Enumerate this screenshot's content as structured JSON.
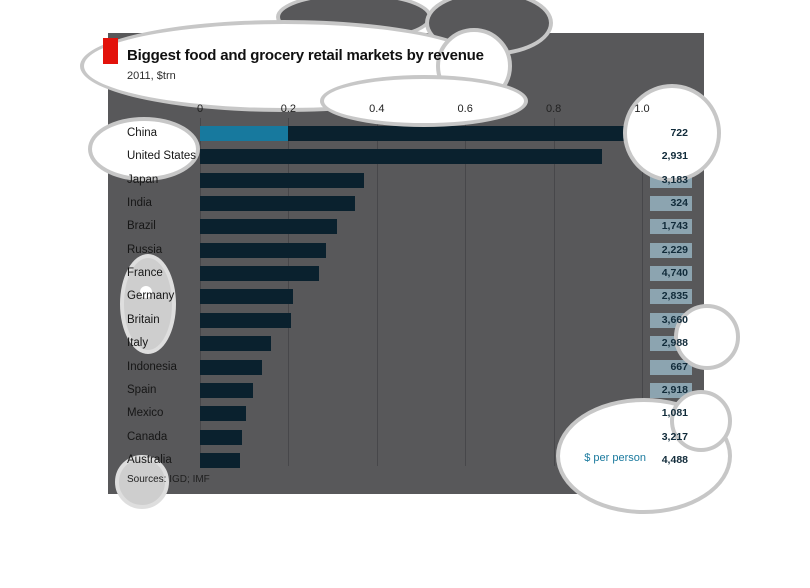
{
  "header": {
    "title": "Biggest food and grocery retail markets by revenue",
    "subtitle": "2011, $trn"
  },
  "chart_data": {
    "type": "bar",
    "orientation": "horizontal",
    "title": "Biggest food and grocery retail markets by revenue",
    "unit_note": "2011, $trn",
    "xlabel": "",
    "ylabel": "",
    "xlim": [
      0,
      1.0
    ],
    "x_ticks": [
      0,
      0.2,
      0.4,
      0.6,
      0.8,
      1.0
    ],
    "x_tick_labels": [
      "0",
      "0.2",
      "0.4",
      "0.6",
      "0.8",
      "1.0"
    ],
    "grid": true,
    "legend_position": "none",
    "categories": [
      "China",
      "United States",
      "Japan",
      "India",
      "Brazil",
      "Russia",
      "France",
      "Germany",
      "Britain",
      "Italy",
      "Indonesia",
      "Spain",
      "Mexico",
      "Canada",
      "Australia"
    ],
    "series": [
      {
        "name": "Revenue, $trn",
        "values": [
          0.97,
          0.91,
          0.37,
          0.35,
          0.31,
          0.285,
          0.27,
          0.21,
          0.205,
          0.16,
          0.14,
          0.12,
          0.105,
          0.095,
          0.09
        ]
      },
      {
        "name": "$ per person",
        "values": [
          722,
          2931,
          3183,
          324,
          1743,
          2229,
          4740,
          2835,
          3660,
          2988,
          667,
          2918,
          1081,
          3217,
          4488
        ]
      }
    ],
    "per_person_labels": [
      "722",
      "2,931",
      "3,183",
      "324",
      "1,743",
      "2,229",
      "4,740",
      "2,835",
      "3,660",
      "2,988",
      "667",
      "2,918",
      "1,081",
      "3,217",
      "4,488"
    ],
    "highlight": {
      "category": "China",
      "segment_from": 0,
      "segment_to": 0.2,
      "color": "#17799E"
    },
    "value_column_label": "$ per person"
  },
  "footer": {
    "sources": "Sources: IGD; IMF"
  },
  "colors": {
    "accent_red": "#E3120B",
    "panel_bg": "#58585A",
    "bar": "#0A212E",
    "highlight_teal": "#17799E",
    "value_chip_bg": "#8CA4B0",
    "value_text": "#112B3A",
    "per_person_label": "#1B7A9E"
  }
}
